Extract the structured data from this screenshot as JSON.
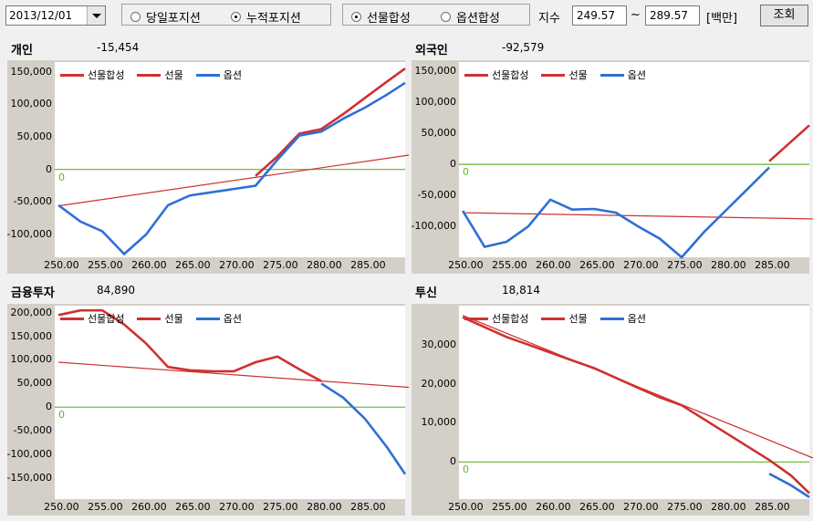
{
  "toolbar": {
    "date": "2013/12/01",
    "radio_today": "당일포지션",
    "radio_cum": "누적포지션",
    "radio_fut": "선물합성",
    "radio_opt": "옵션합성",
    "index_label": "지수",
    "index_from": "249.57",
    "tilde": "~",
    "index_to": "289.57",
    "unit": "[백만]",
    "query_label": "조회"
  },
  "legend": {
    "synth": "선물합성",
    "fut": "선물",
    "opt": "옵션"
  },
  "colors": {
    "synth": "#cc3333",
    "fut": "#d03030",
    "opt": "#2f6fd6",
    "zero": "#66b032"
  },
  "panels": [
    {
      "id": "individual",
      "title": "개인",
      "value": "-15,454",
      "yticks": [
        "150,000",
        "100,000",
        "50,000",
        "0",
        "-50,000",
        "-100,000"
      ],
      "ytick_vals": [
        150000,
        100000,
        50000,
        0,
        -50000,
        -100000
      ],
      "ymin": -135000,
      "ymax": 165000,
      "zero_label": "0"
    },
    {
      "id": "foreign",
      "title": "외국인",
      "value": "-92,579",
      "yticks": [
        "150,000",
        "100,000",
        "50,000",
        "0",
        "-50,000",
        "-100,000"
      ],
      "ytick_vals": [
        150000,
        100000,
        50000,
        0,
        -50000,
        -100000
      ],
      "ymin": -150000,
      "ymax": 165000,
      "zero_label": "0"
    },
    {
      "id": "financial",
      "title": "금융투자",
      "value": "84,890",
      "yticks": [
        "200,000",
        "150,000",
        "100,000",
        "50,000",
        "0",
        "-50,000",
        "-100,000",
        "-150,000"
      ],
      "ytick_vals": [
        200000,
        150000,
        100000,
        50000,
        0,
        -50000,
        -100000,
        -150000
      ],
      "ymin": -195000,
      "ymax": 215000,
      "zero_label": "0"
    },
    {
      "id": "trust",
      "title": "투신",
      "value": "18,814",
      "yticks": [
        "30,000",
        "20,000",
        "10,000",
        "0"
      ],
      "ytick_vals": [
        30000,
        20000,
        10000,
        0
      ],
      "ymin": -9500,
      "ymax": 40000,
      "zero_label": "0"
    }
  ],
  "xticks": [
    "250.00",
    "255.00",
    "260.00",
    "265.00",
    "270.00",
    "275.00",
    "280.00",
    "285.00"
  ],
  "xtick_vals": [
    250,
    255,
    260,
    265,
    270,
    275,
    280,
    285
  ],
  "xmin": 249.57,
  "xmax": 289.57,
  "chart_data": [
    {
      "type": "line",
      "title": "개인",
      "series": [
        {
          "name": "선물합성",
          "x": [
            250,
            290
          ],
          "values": [
            -56000,
            22000
          ]
        },
        {
          "name": "선물",
          "x": [
            272.5,
            275,
            277.5,
            280,
            282.5,
            285,
            287.5,
            289.57
          ],
          "values": [
            -10000,
            20000,
            55000,
            62000,
            85000,
            110000,
            135000,
            155000
          ]
        },
        {
          "name": "옵션",
          "x": [
            250,
            252.5,
            255,
            257.5,
            260,
            262.5,
            265,
            267.5,
            270,
            272.5,
            275,
            277.5,
            280,
            282.5,
            285,
            287.5,
            289.57
          ],
          "values": [
            -55000,
            -80000,
            -95000,
            -130000,
            -100000,
            -55000,
            -40000,
            -35000,
            -30000,
            -25000,
            15000,
            52000,
            58000,
            78000,
            95000,
            115000,
            133000
          ]
        }
      ]
    },
    {
      "type": "line",
      "title": "외국인",
      "series": [
        {
          "name": "선물합성",
          "x": [
            250,
            290
          ],
          "values": [
            -78000,
            -88000
          ]
        },
        {
          "name": "선물",
          "x": [
            285,
            289.57
          ],
          "values": [
            5000,
            63000
          ]
        },
        {
          "name": "옵션",
          "x": [
            250,
            252.5,
            255,
            257.5,
            260,
            262.5,
            265,
            267.5,
            270,
            272.5,
            275,
            277.5,
            280,
            282.5,
            285
          ],
          "values": [
            -75000,
            -133000,
            -125000,
            -100000,
            -57000,
            -73000,
            -72000,
            -78000,
            -100000,
            -120000,
            -150000,
            -110000,
            -75000,
            -40000,
            -5000
          ]
        }
      ]
    },
    {
      "type": "line",
      "title": "금융투자",
      "series": [
        {
          "name": "선물합성",
          "x": [
            250,
            290
          ],
          "values": [
            95000,
            42000
          ]
        },
        {
          "name": "선물",
          "x": [
            250,
            252.5,
            255,
            257.5,
            260,
            262.5,
            265,
            267.5,
            270,
            272.5,
            275,
            277.5,
            280
          ],
          "values": [
            195000,
            205000,
            205000,
            175000,
            135000,
            85000,
            78000,
            76000,
            76000,
            95000,
            107000,
            80000,
            55000
          ]
        },
        {
          "name": "옵션",
          "x": [
            280,
            282.5,
            285,
            287.5,
            289.57
          ],
          "values": [
            50000,
            20000,
            -25000,
            -85000,
            -142000
          ]
        }
      ]
    },
    {
      "type": "line",
      "title": "투신",
      "series": [
        {
          "name": "선물합성",
          "x": [
            250,
            290
          ],
          "values": [
            37500,
            1000
          ]
        },
        {
          "name": "선물",
          "x": [
            250,
            252.5,
            255,
            257.5,
            260,
            262.5,
            265,
            267.5,
            270,
            272.5,
            275,
            277.5,
            280,
            282.5,
            285,
            287.5,
            289.57
          ],
          "values": [
            37000,
            34500,
            32000,
            30000,
            28000,
            26000,
            24000,
            21500,
            19000,
            16500,
            14500,
            11000,
            7500,
            4000,
            500,
            -3500,
            -8000
          ]
        },
        {
          "name": "옵션",
          "x": [
            285,
            287.5,
            289.57
          ],
          "values": [
            -3000,
            -6000,
            -9000
          ]
        }
      ]
    }
  ]
}
